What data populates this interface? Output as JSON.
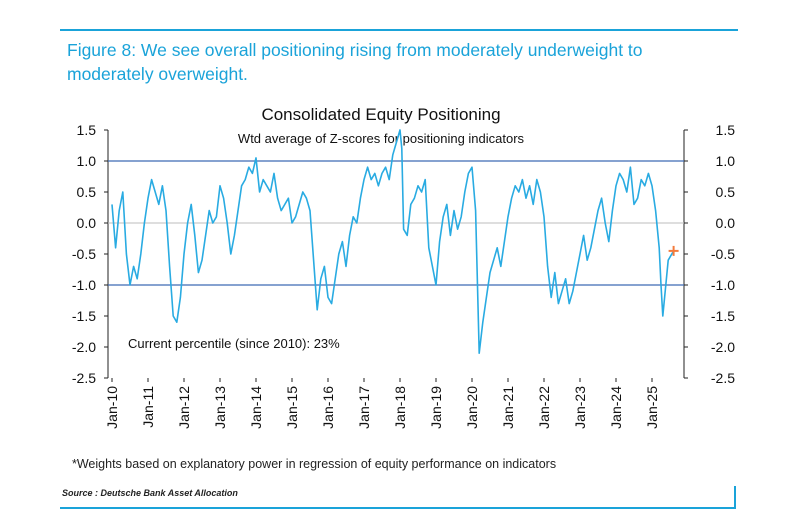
{
  "figure_title": "Figure 8: We see overall positioning rising from moderately underweight to moderately overweight.",
  "footnote": "*Weights based on explanatory power in regression of equity performance on indicators",
  "source": "Source : Deutsche Bank Asset Allocation",
  "colors": {
    "accent": "#1aa3d9",
    "series": "#29abe2",
    "current_marker": "#f47b3c",
    "reference_lines": "#3d6bb3"
  },
  "chart_data": {
    "type": "line",
    "title": "Consolidated Equity Positioning",
    "subtitle": "Wtd average of Z-scores for positioning indicators",
    "annotation": "Current percentile (since 2010): 23%",
    "xlabel": "",
    "ylabel": "",
    "x_range": [
      2010.0,
      2025.7
    ],
    "ylim": [
      -2.5,
      1.5
    ],
    "yticks": [
      "1.5",
      "1.0",
      "0.5",
      "0.0",
      "-0.5",
      "-1.0",
      "-1.5",
      "-2.0",
      "-2.5"
    ],
    "xticks": [
      "Jan-10",
      "Jan-11",
      "Jan-12",
      "Jan-13",
      "Jan-14",
      "Jan-15",
      "Jan-16",
      "Jan-17",
      "Jan-18",
      "Jan-19",
      "Jan-20",
      "Jan-21",
      "Jan-22",
      "Jan-23",
      "Jan-24",
      "Jan-25"
    ],
    "reference_lines": [
      1.0,
      -1.0
    ],
    "grid": false,
    "legend": "none",
    "current_point": {
      "x": 2025.6,
      "y": -0.45
    },
    "series": [
      {
        "values": [
          [
            2010.0,
            0.3
          ],
          [
            2010.1,
            -0.4
          ],
          [
            2010.2,
            0.2
          ],
          [
            2010.3,
            0.5
          ],
          [
            2010.4,
            -0.5
          ],
          [
            2010.5,
            -1.0
          ],
          [
            2010.6,
            -0.7
          ],
          [
            2010.7,
            -0.9
          ],
          [
            2010.8,
            -0.5
          ],
          [
            2010.9,
            0.0
          ],
          [
            2011.0,
            0.4
          ],
          [
            2011.1,
            0.7
          ],
          [
            2011.2,
            0.5
          ],
          [
            2011.3,
            0.3
          ],
          [
            2011.4,
            0.6
          ],
          [
            2011.5,
            0.2
          ],
          [
            2011.6,
            -0.7
          ],
          [
            2011.7,
            -1.5
          ],
          [
            2011.8,
            -1.6
          ],
          [
            2011.9,
            -1.2
          ],
          [
            2012.0,
            -0.5
          ],
          [
            2012.1,
            0.0
          ],
          [
            2012.2,
            0.3
          ],
          [
            2012.3,
            -0.2
          ],
          [
            2012.4,
            -0.8
          ],
          [
            2012.5,
            -0.6
          ],
          [
            2012.6,
            -0.2
          ],
          [
            2012.7,
            0.2
          ],
          [
            2012.8,
            0.0
          ],
          [
            2012.9,
            0.1
          ],
          [
            2013.0,
            0.6
          ],
          [
            2013.1,
            0.4
          ],
          [
            2013.2,
            0.0
          ],
          [
            2013.3,
            -0.5
          ],
          [
            2013.4,
            -0.2
          ],
          [
            2013.5,
            0.2
          ],
          [
            2013.6,
            0.6
          ],
          [
            2013.7,
            0.7
          ],
          [
            2013.8,
            0.9
          ],
          [
            2013.9,
            0.8
          ],
          [
            2014.0,
            1.05
          ],
          [
            2014.1,
            0.5
          ],
          [
            2014.2,
            0.7
          ],
          [
            2014.3,
            0.6
          ],
          [
            2014.4,
            0.5
          ],
          [
            2014.5,
            0.8
          ],
          [
            2014.6,
            0.4
          ],
          [
            2014.7,
            0.2
          ],
          [
            2014.8,
            0.3
          ],
          [
            2014.9,
            0.4
          ],
          [
            2015.0,
            0.0
          ],
          [
            2015.1,
            0.1
          ],
          [
            2015.2,
            0.3
          ],
          [
            2015.3,
            0.5
          ],
          [
            2015.4,
            0.4
          ],
          [
            2015.5,
            0.2
          ],
          [
            2015.6,
            -0.6
          ],
          [
            2015.7,
            -1.4
          ],
          [
            2015.8,
            -0.9
          ],
          [
            2015.9,
            -0.7
          ],
          [
            2016.0,
            -1.2
          ],
          [
            2016.1,
            -1.3
          ],
          [
            2016.2,
            -0.9
          ],
          [
            2016.3,
            -0.5
          ],
          [
            2016.4,
            -0.3
          ],
          [
            2016.5,
            -0.7
          ],
          [
            2016.6,
            -0.2
          ],
          [
            2016.7,
            0.1
          ],
          [
            2016.8,
            0.0
          ],
          [
            2016.9,
            0.4
          ],
          [
            2017.0,
            0.7
          ],
          [
            2017.1,
            0.9
          ],
          [
            2017.2,
            0.7
          ],
          [
            2017.3,
            0.8
          ],
          [
            2017.4,
            0.6
          ],
          [
            2017.5,
            0.8
          ],
          [
            2017.6,
            0.9
          ],
          [
            2017.7,
            0.7
          ],
          [
            2017.8,
            1.1
          ],
          [
            2017.9,
            1.3
          ],
          [
            2018.0,
            1.5
          ],
          [
            2018.05,
            1.2
          ],
          [
            2018.1,
            -0.1
          ],
          [
            2018.2,
            -0.2
          ],
          [
            2018.3,
            0.3
          ],
          [
            2018.4,
            0.4
          ],
          [
            2018.5,
            0.6
          ],
          [
            2018.6,
            0.5
          ],
          [
            2018.7,
            0.7
          ],
          [
            2018.8,
            -0.4
          ],
          [
            2018.9,
            -0.7
          ],
          [
            2019.0,
            -1.0
          ],
          [
            2019.1,
            -0.3
          ],
          [
            2019.2,
            0.1
          ],
          [
            2019.3,
            0.3
          ],
          [
            2019.4,
            -0.2
          ],
          [
            2019.5,
            0.2
          ],
          [
            2019.6,
            -0.1
          ],
          [
            2019.7,
            0.1
          ],
          [
            2019.8,
            0.5
          ],
          [
            2019.9,
            0.8
          ],
          [
            2020.0,
            0.9
          ],
          [
            2020.1,
            0.2
          ],
          [
            2020.2,
            -2.1
          ],
          [
            2020.3,
            -1.6
          ],
          [
            2020.4,
            -1.2
          ],
          [
            2020.5,
            -0.8
          ],
          [
            2020.6,
            -0.6
          ],
          [
            2020.7,
            -0.4
          ],
          [
            2020.8,
            -0.7
          ],
          [
            2020.9,
            -0.3
          ],
          [
            2021.0,
            0.1
          ],
          [
            2021.1,
            0.4
          ],
          [
            2021.2,
            0.6
          ],
          [
            2021.3,
            0.5
          ],
          [
            2021.4,
            0.7
          ],
          [
            2021.5,
            0.4
          ],
          [
            2021.6,
            0.6
          ],
          [
            2021.7,
            0.3
          ],
          [
            2021.8,
            0.7
          ],
          [
            2021.9,
            0.5
          ],
          [
            2022.0,
            0.1
          ],
          [
            2022.1,
            -0.7
          ],
          [
            2022.2,
            -1.2
          ],
          [
            2022.3,
            -0.8
          ],
          [
            2022.4,
            -1.3
          ],
          [
            2022.5,
            -1.1
          ],
          [
            2022.6,
            -0.9
          ],
          [
            2022.7,
            -1.3
          ],
          [
            2022.8,
            -1.1
          ],
          [
            2022.9,
            -0.8
          ],
          [
            2023.0,
            -0.5
          ],
          [
            2023.1,
            -0.2
          ],
          [
            2023.2,
            -0.6
          ],
          [
            2023.3,
            -0.4
          ],
          [
            2023.4,
            -0.1
          ],
          [
            2023.5,
            0.2
          ],
          [
            2023.6,
            0.4
          ],
          [
            2023.7,
            0.0
          ],
          [
            2023.8,
            -0.3
          ],
          [
            2023.9,
            0.2
          ],
          [
            2024.0,
            0.6
          ],
          [
            2024.1,
            0.8
          ],
          [
            2024.2,
            0.7
          ],
          [
            2024.3,
            0.5
          ],
          [
            2024.4,
            0.9
          ],
          [
            2024.5,
            0.3
          ],
          [
            2024.6,
            0.4
          ],
          [
            2024.7,
            0.7
          ],
          [
            2024.8,
            0.6
          ],
          [
            2024.9,
            0.8
          ],
          [
            2025.0,
            0.6
          ],
          [
            2025.1,
            0.2
          ],
          [
            2025.2,
            -0.4
          ],
          [
            2025.25,
            -1.0
          ],
          [
            2025.3,
            -1.5
          ],
          [
            2025.35,
            -1.2
          ],
          [
            2025.45,
            -0.6
          ],
          [
            2025.55,
            -0.5
          ],
          [
            2025.6,
            -0.45
          ]
        ]
      }
    ]
  }
}
